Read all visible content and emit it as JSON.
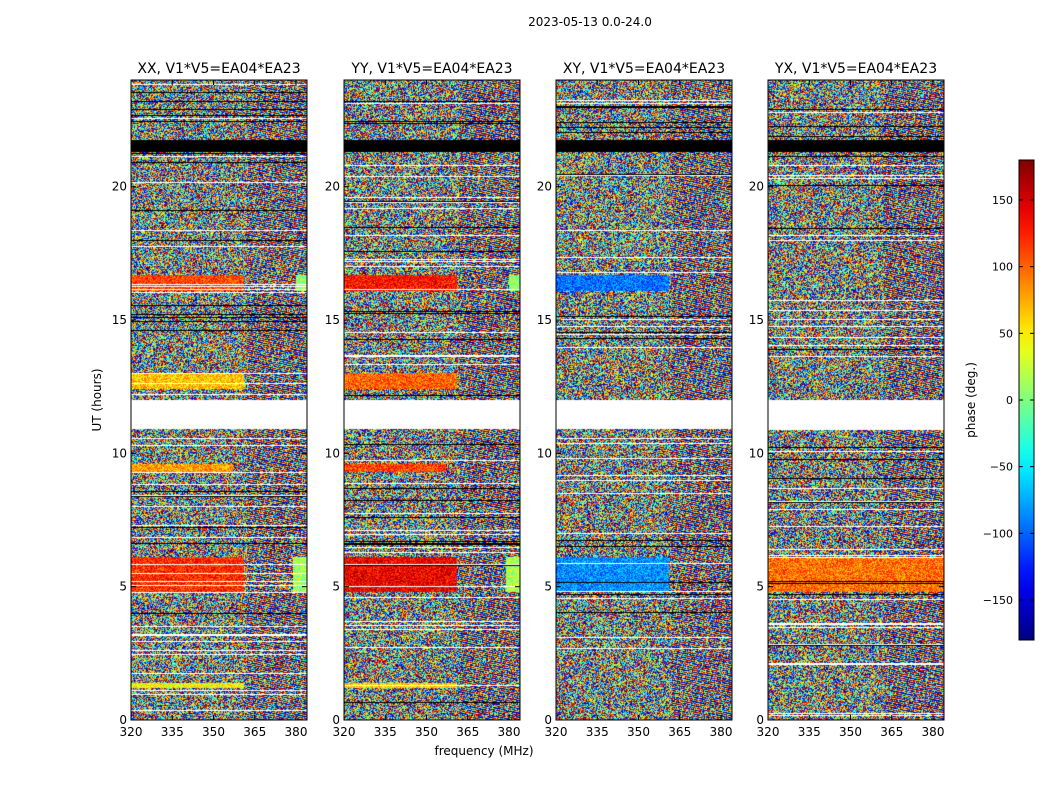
{
  "figure": {
    "suptitle": "2023-05-13 0.0-24.0"
  },
  "chart_data": {
    "type": "heatmap",
    "title": "2023-05-13 0.0-24.0",
    "xlabel": "frequency (MHz)",
    "ylabel": "UT (hours)",
    "xlim": [
      320,
      384
    ],
    "ylim": [
      0,
      24
    ],
    "xticks": [
      320,
      335,
      350,
      365,
      380
    ],
    "yticks": [
      0,
      5,
      10,
      15,
      20
    ],
    "panels": [
      {
        "title": "XX, V1*V5=EA04*EA23",
        "features": [
          {
            "t0": 16.1,
            "t1": 16.7,
            "f0": 320,
            "f1": 361,
            "phase": 110
          },
          {
            "t0": 16.1,
            "t1": 16.7,
            "f0": 380,
            "f1": 384,
            "phase": 5
          },
          {
            "t0": 12.4,
            "t1": 13.0,
            "f0": 320,
            "f1": 361,
            "phase": 65
          },
          {
            "t0": 9.3,
            "t1": 9.6,
            "f0": 320,
            "f1": 357,
            "phase": 80
          },
          {
            "t0": 4.8,
            "t1": 6.1,
            "f0": 320,
            "f1": 361,
            "phase": 120
          },
          {
            "t0": 4.8,
            "t1": 6.1,
            "f0": 379,
            "f1": 384,
            "phase": 10
          },
          {
            "t0": 1.2,
            "t1": 1.4,
            "f0": 320,
            "f1": 361,
            "phase": 45
          }
        ]
      },
      {
        "title": "YY, V1*V5=EA04*EA23",
        "features": [
          {
            "t0": 16.1,
            "t1": 16.7,
            "f0": 320,
            "f1": 361,
            "phase": 130
          },
          {
            "t0": 16.1,
            "t1": 16.7,
            "f0": 380,
            "f1": 384,
            "phase": 5
          },
          {
            "t0": 12.4,
            "t1": 13.0,
            "f0": 320,
            "f1": 361,
            "phase": 100
          },
          {
            "t0": 9.3,
            "t1": 9.6,
            "f0": 320,
            "f1": 357,
            "phase": 110
          },
          {
            "t0": 4.8,
            "t1": 6.1,
            "f0": 320,
            "f1": 361,
            "phase": 140
          },
          {
            "t0": 4.8,
            "t1": 6.1,
            "f0": 379,
            "f1": 384,
            "phase": 15
          },
          {
            "t0": 1.2,
            "t1": 1.4,
            "f0": 320,
            "f1": 361,
            "phase": 60
          }
        ]
      },
      {
        "title": "XY, V1*V5=EA04*EA23",
        "features": [
          {
            "t0": 16.1,
            "t1": 16.7,
            "f0": 320,
            "f1": 361,
            "phase": -95
          },
          {
            "t0": 4.8,
            "t1": 6.1,
            "f0": 320,
            "f1": 361,
            "phase": -85
          }
        ]
      },
      {
        "title": "YX, V1*V5=EA04*EA23",
        "features": [
          {
            "t0": 4.8,
            "t1": 6.1,
            "f0": 320,
            "f1": 384,
            "phase": 95
          }
        ]
      }
    ],
    "flagged_hours": [
      {
        "t0": 10.9,
        "t1": 12.0
      },
      {
        "t0": 21.3,
        "t1": 21.75
      }
    ],
    "colorbar": {
      "label": "phase (deg.)",
      "range": [
        -180,
        180
      ],
      "ticks": [
        -150,
        -100,
        -50,
        0,
        50,
        100,
        150
      ],
      "tick_labels": [
        "−150",
        "−100",
        "−50",
        "0",
        "50",
        "100",
        "150"
      ],
      "colormap": "jet"
    }
  }
}
